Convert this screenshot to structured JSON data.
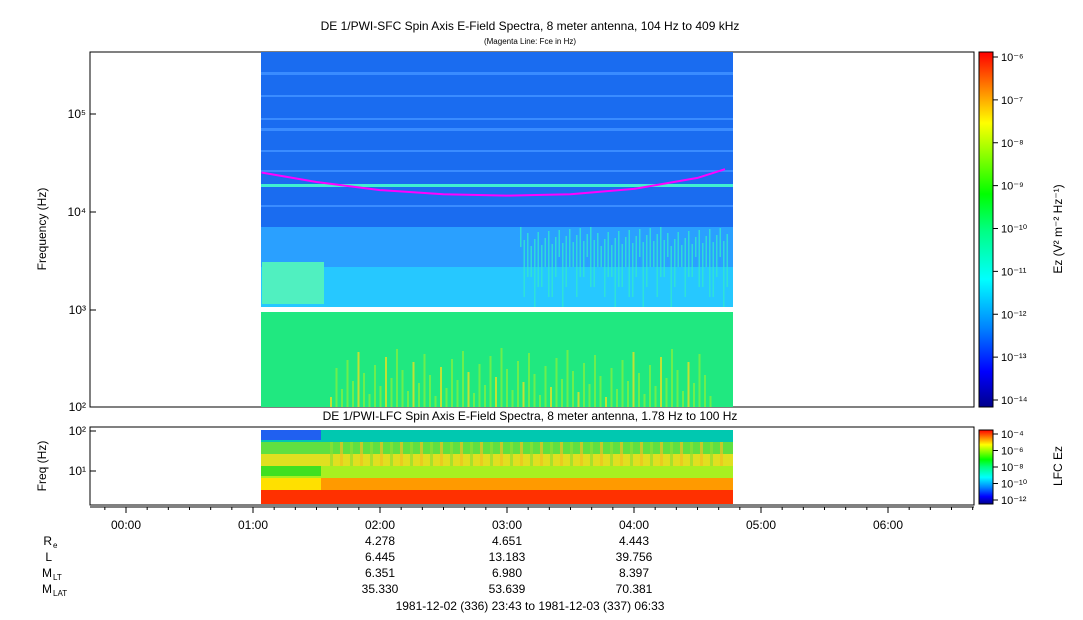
{
  "sfc": {
    "title": "DE 1/PWI-SFC  Spin Axis E-Field Spectra, 8 meter antenna, 104 Hz to 409 kHz",
    "subtitle": "(Magenta Line: Fce in Hz)",
    "ylabel": "Frequency (Hz)",
    "cbar_label": "Ez (V² m⁻² Hz⁻¹)"
  },
  "lfc": {
    "title": "DE 1/PWI-LFC  Spin Axis E-Field Spectra, 8 meter antenna, 1.78 Hz to 100 Hz",
    "ylabel": "Freq (Hz)",
    "cbar_label": "LFC Ez"
  },
  "footer": {
    "time_range": "1981-12-02 (336) 23:43 to 1981-12-03 (337) 06:33"
  },
  "chart_data": [
    {
      "type": "heatmap",
      "title": "DE 1/PWI-SFC  Spin Axis E-Field Spectra, 8 meter antenna, 104 Hz to 409 kHz",
      "subtitle": "(Magenta Line: Fce in Hz)",
      "ylabel": "Frequency (Hz)",
      "yscale": "log",
      "ylim": [
        100,
        409000
      ],
      "y_ticks": [
        "10²",
        "10³",
        "10⁴",
        "10⁵"
      ],
      "xlim": [
        "23:43",
        "06:33"
      ],
      "data_interval": [
        "01:04",
        "04:43"
      ],
      "colorbar": {
        "label": "Ez (V² m⁻² Hz⁻¹)",
        "scale": "log",
        "range": [
          "10⁻¹⁴",
          "10⁻⁶"
        ],
        "ticks": [
          "10⁻⁶",
          "10⁻⁷",
          "10⁻⁸",
          "10⁻⁹",
          "10⁻¹⁰",
          "10⁻¹¹",
          "10⁻¹²",
          "10⁻¹³",
          "10⁻¹⁴"
        ],
        "colormap": [
          "#00008b",
          "#0000ff",
          "#0080ff",
          "#00ffff",
          "#00ff80",
          "#00ff00",
          "#80ff00",
          "#ffff00",
          "#ff8000",
          "#ff0000"
        ]
      },
      "overlay": {
        "name": "Fce in Hz",
        "color": "#ff00ff",
        "times": [
          "01:04",
          "01:30",
          "02:00",
          "02:30",
          "03:00",
          "03:30",
          "04:00",
          "04:30",
          "04:43"
        ],
        "values": [
          25000,
          20000,
          16500,
          15000,
          14500,
          15000,
          17000,
          22000,
          27000
        ]
      }
    },
    {
      "type": "heatmap",
      "title": "DE 1/PWI-LFC  Spin Axis E-Field Spectra, 8 meter antenna, 1.78 Hz to 100 Hz",
      "ylabel": "Freq (Hz)",
      "yscale": "log",
      "ylim": [
        1.78,
        100
      ],
      "y_ticks": [
        "10¹",
        "10²"
      ],
      "xlim": [
        "23:43",
        "06:33"
      ],
      "x_ticks": [
        "00:00",
        "01:00",
        "02:00",
        "03:00",
        "04:00",
        "05:00",
        "06:00"
      ],
      "data_interval": [
        "01:04",
        "04:43"
      ],
      "colorbar": {
        "label": "LFC Ez",
        "scale": "log",
        "range": [
          "10⁻¹²",
          "10⁻⁴"
        ],
        "ticks": [
          "10⁻⁴",
          "10⁻⁶",
          "10⁻⁸",
          "10⁻¹⁰",
          "10⁻¹²"
        ],
        "colormap": [
          "#00008b",
          "#0000ff",
          "#0080ff",
          "#00ffff",
          "#00ff80",
          "#00ff00",
          "#80ff00",
          "#ffff00",
          "#ff8000",
          "#ff0000"
        ]
      }
    }
  ],
  "ephemeris": {
    "rows": [
      {
        "label": "R",
        "sub": "e",
        "values": [
          "4.278",
          "4.651",
          "4.443"
        ]
      },
      {
        "label": "L",
        "sub": "",
        "values": [
          "6.445",
          "13.183",
          "39.756"
        ]
      },
      {
        "label": "M",
        "sub": "LT",
        "values": [
          "6.351",
          "6.980",
          "8.397"
        ]
      },
      {
        "label": "M",
        "sub": "LAT",
        "values": [
          "35.330",
          "53.639",
          "70.381"
        ]
      }
    ],
    "times": [
      "02:00",
      "03:00",
      "04:00"
    ]
  }
}
